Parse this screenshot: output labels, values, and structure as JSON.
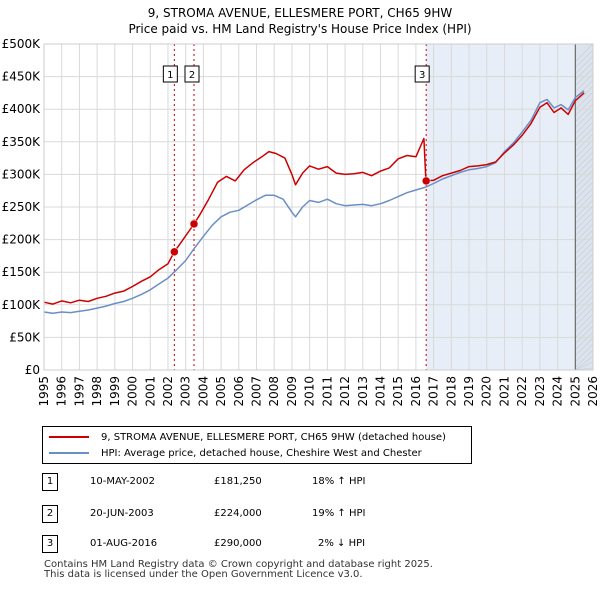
{
  "title_line1": "9, STROMA AVENUE, ELLESMERE PORT, CH65 9HW",
  "title_line2": "Price paid vs. HM Land Registry's House Price Index (HPI)",
  "legend": {
    "property_label": "9, STROMA AVENUE, ELLESMERE PORT, CH65 9HW (detached house)",
    "hpi_label": "HPI: Average price, detached house, Cheshire West and Chester"
  },
  "transactions": [
    {
      "num": "1",
      "date": "10-MAY-2002",
      "price": "£181,250",
      "change": "18% ↑ HPI"
    },
    {
      "num": "2",
      "date": "20-JUN-2003",
      "price": "£224,000",
      "change": "19% ↑ HPI"
    },
    {
      "num": "3",
      "date": "01-AUG-2016",
      "price": "£290,000",
      "change": "2% ↓ HPI"
    }
  ],
  "footer_line1": "Contains HM Land Registry data © Crown copyright and database right 2025.",
  "footer_line2": "This data is licensed under the Open Government Licence v3.0.",
  "chart_data": {
    "type": "line",
    "title": "9, STROMA AVENUE, ELLESMERE PORT, CH65 9HW",
    "subtitle": "Price paid vs. HM Land Registry's House Price Index (HPI)",
    "xlim": [
      1995,
      2026
    ],
    "ylim": [
      0,
      500000
    ],
    "grid": true,
    "y_ticks": [
      {
        "value": 0,
        "label": "£0"
      },
      {
        "value": 50000,
        "label": "£50K"
      },
      {
        "value": 100000,
        "label": "£100K"
      },
      {
        "value": 150000,
        "label": "£150K"
      },
      {
        "value": 200000,
        "label": "£200K"
      },
      {
        "value": 250000,
        "label": "£250K"
      },
      {
        "value": 300000,
        "label": "£300K"
      },
      {
        "value": 350000,
        "label": "£350K"
      },
      {
        "value": 400000,
        "label": "£400K"
      },
      {
        "value": 450000,
        "label": "£450K"
      },
      {
        "value": 500000,
        "label": "£500K"
      }
    ],
    "x_ticks": [
      "1995",
      "1996",
      "1997",
      "1998",
      "1999",
      "2000",
      "2001",
      "2002",
      "2003",
      "2004",
      "2005",
      "2006",
      "2007",
      "2008",
      "2009",
      "2010",
      "2011",
      "2012",
      "2013",
      "2014",
      "2015",
      "2016",
      "2017",
      "2018",
      "2019",
      "2020",
      "2021",
      "2022",
      "2023",
      "2024",
      "2025",
      "2026"
    ],
    "forecast_start": 2025.0,
    "colors": {
      "property": "#cc0000",
      "hpi": "#6a8fc7",
      "shade": "#e8eef8",
      "marker": "#cc0000"
    },
    "series": [
      {
        "name": "9, STROMA AVENUE, ELLESMERE PORT, CH65 9HW (detached house)",
        "color": "#cc0000",
        "points": [
          [
            1995.0,
            104000
          ],
          [
            1995.5,
            101000
          ],
          [
            1996.0,
            106000
          ],
          [
            1996.5,
            103000
          ],
          [
            1997.0,
            107000
          ],
          [
            1997.5,
            105000
          ],
          [
            1998.0,
            110000
          ],
          [
            1998.5,
            113000
          ],
          [
            1999.0,
            118000
          ],
          [
            1999.5,
            121000
          ],
          [
            2000.0,
            128000
          ],
          [
            2000.5,
            136000
          ],
          [
            2001.0,
            143000
          ],
          [
            2001.5,
            154000
          ],
          [
            2002.0,
            163000
          ],
          [
            2002.36,
            181250
          ],
          [
            2002.8,
            198000
          ],
          [
            2003.47,
            224000
          ],
          [
            2003.8,
            238000
          ],
          [
            2004.3,
            262000
          ],
          [
            2004.8,
            288000
          ],
          [
            2005.3,
            297000
          ],
          [
            2005.8,
            290000
          ],
          [
            2006.3,
            307000
          ],
          [
            2006.8,
            318000
          ],
          [
            2007.3,
            327000
          ],
          [
            2007.7,
            335000
          ],
          [
            2008.1,
            332000
          ],
          [
            2008.6,
            325000
          ],
          [
            2009.0,
            300000
          ],
          [
            2009.2,
            284000
          ],
          [
            2009.6,
            302000
          ],
          [
            2010.0,
            313000
          ],
          [
            2010.5,
            308000
          ],
          [
            2011.0,
            312000
          ],
          [
            2011.5,
            302000
          ],
          [
            2012.0,
            300000
          ],
          [
            2012.5,
            301000
          ],
          [
            2013.0,
            303000
          ],
          [
            2013.5,
            298000
          ],
          [
            2014.0,
            305000
          ],
          [
            2014.5,
            310000
          ],
          [
            2015.0,
            324000
          ],
          [
            2015.5,
            329000
          ],
          [
            2016.0,
            327000
          ],
          [
            2016.45,
            355000
          ],
          [
            2016.55,
            300000
          ],
          [
            2016.58,
            290000
          ],
          [
            2017.0,
            291000
          ],
          [
            2017.5,
            298000
          ],
          [
            2018.0,
            302000
          ],
          [
            2018.5,
            306000
          ],
          [
            2019.0,
            312000
          ],
          [
            2019.5,
            313000
          ],
          [
            2020.0,
            315000
          ],
          [
            2020.5,
            319000
          ],
          [
            2021.0,
            333000
          ],
          [
            2021.5,
            345000
          ],
          [
            2022.0,
            360000
          ],
          [
            2022.5,
            378000
          ],
          [
            2023.0,
            403000
          ],
          [
            2023.4,
            410000
          ],
          [
            2023.8,
            395000
          ],
          [
            2024.2,
            402000
          ],
          [
            2024.6,
            392000
          ],
          [
            2025.0,
            413000
          ],
          [
            2025.5,
            425000
          ]
        ]
      },
      {
        "name": "HPI: Average price, detached house, Cheshire West and Chester",
        "color": "#6a8fc7",
        "points": [
          [
            1995.0,
            89000
          ],
          [
            1995.5,
            87000
          ],
          [
            1996.0,
            89000
          ],
          [
            1996.5,
            88000
          ],
          [
            1997.0,
            90000
          ],
          [
            1997.5,
            92000
          ],
          [
            1998.0,
            95000
          ],
          [
            1998.5,
            98000
          ],
          [
            1999.0,
            102000
          ],
          [
            1999.5,
            105000
          ],
          [
            2000.0,
            110000
          ],
          [
            2000.5,
            116000
          ],
          [
            2001.0,
            123000
          ],
          [
            2001.5,
            132000
          ],
          [
            2002.0,
            141000
          ],
          [
            2002.5,
            154000
          ],
          [
            2003.0,
            168000
          ],
          [
            2003.5,
            187000
          ],
          [
            2004.0,
            205000
          ],
          [
            2004.5,
            222000
          ],
          [
            2005.0,
            235000
          ],
          [
            2005.5,
            242000
          ],
          [
            2006.0,
            245000
          ],
          [
            2006.5,
            253000
          ],
          [
            2007.0,
            261000
          ],
          [
            2007.5,
            268000
          ],
          [
            2008.0,
            268000
          ],
          [
            2008.5,
            262000
          ],
          [
            2009.0,
            242000
          ],
          [
            2009.2,
            235000
          ],
          [
            2009.6,
            250000
          ],
          [
            2010.0,
            260000
          ],
          [
            2010.5,
            257000
          ],
          [
            2011.0,
            262000
          ],
          [
            2011.5,
            255000
          ],
          [
            2012.0,
            252000
          ],
          [
            2012.5,
            253000
          ],
          [
            2013.0,
            254000
          ],
          [
            2013.5,
            252000
          ],
          [
            2014.0,
            255000
          ],
          [
            2014.5,
            260000
          ],
          [
            2015.0,
            266000
          ],
          [
            2015.5,
            272000
          ],
          [
            2016.0,
            276000
          ],
          [
            2016.5,
            280000
          ],
          [
            2017.0,
            286000
          ],
          [
            2017.5,
            293000
          ],
          [
            2018.0,
            298000
          ],
          [
            2018.5,
            303000
          ],
          [
            2019.0,
            307000
          ],
          [
            2019.5,
            309000
          ],
          [
            2020.0,
            312000
          ],
          [
            2020.5,
            318000
          ],
          [
            2021.0,
            335000
          ],
          [
            2021.5,
            348000
          ],
          [
            2022.0,
            365000
          ],
          [
            2022.5,
            383000
          ],
          [
            2023.0,
            410000
          ],
          [
            2023.4,
            415000
          ],
          [
            2023.8,
            402000
          ],
          [
            2024.2,
            407000
          ],
          [
            2024.6,
            399000
          ],
          [
            2025.0,
            418000
          ],
          [
            2025.5,
            428000
          ]
        ]
      }
    ],
    "transactions": [
      {
        "label": "1",
        "x": 2002.36,
        "y": 181250,
        "date": "10-MAY-2002",
        "price": 181250
      },
      {
        "label": "2",
        "x": 2003.47,
        "y": 224000,
        "date": "20-JUN-2003",
        "price": 224000
      },
      {
        "label": "3",
        "x": 2016.58,
        "y": 290000,
        "date": "01-AUG-2016",
        "price": 290000
      }
    ]
  }
}
